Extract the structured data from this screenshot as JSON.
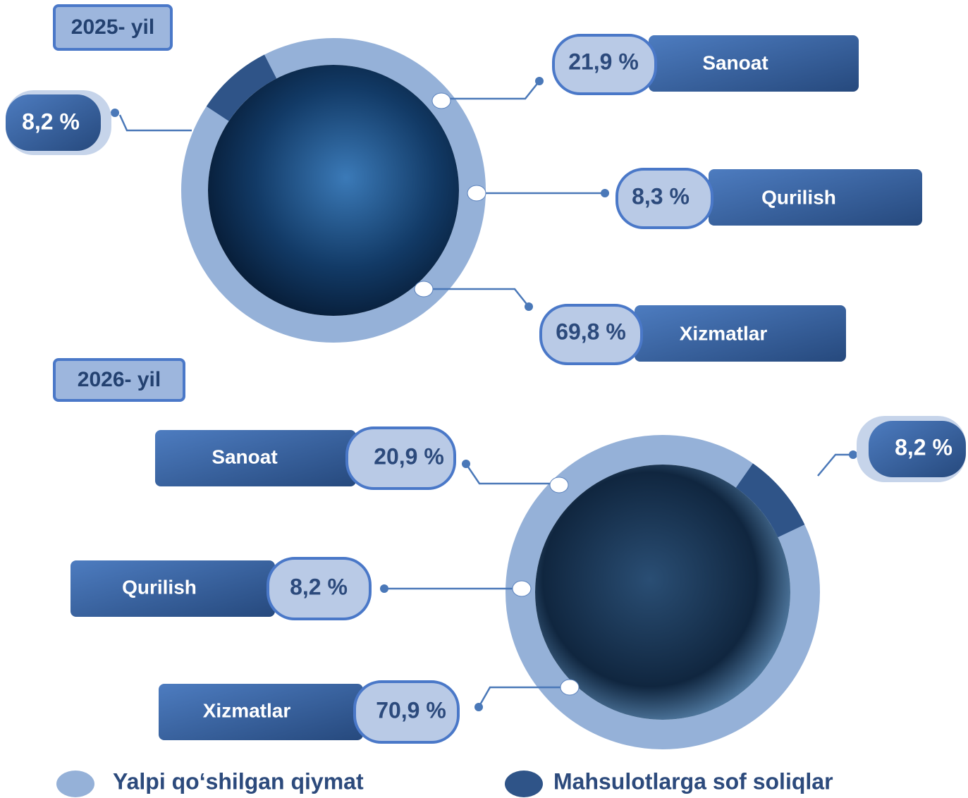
{
  "years": [
    {
      "title": "2025- yil",
      "tax": {
        "value": 8.2,
        "label": "8,2 %"
      },
      "sectors": [
        {
          "name": "Sanoat",
          "label": "21,9 %"
        },
        {
          "name": "Qurilish",
          "label": "8,3 %"
        },
        {
          "name": "Xizmatlar",
          "label": "69,8 %"
        }
      ]
    },
    {
      "title": "2026- yil",
      "tax": {
        "value": 8.2,
        "label": "8,2 %"
      },
      "sectors": [
        {
          "name": "Sanoat",
          "label": "20,9 %"
        },
        {
          "name": "Qurilish",
          "label": "8,2 %"
        },
        {
          "name": "Xizmatlar",
          "label": "70,9 %"
        }
      ]
    }
  ],
  "legend": [
    "Yalpi qo‘shilgan qiymat",
    "Mahsulotlarga sof soliqlar"
  ]
}
